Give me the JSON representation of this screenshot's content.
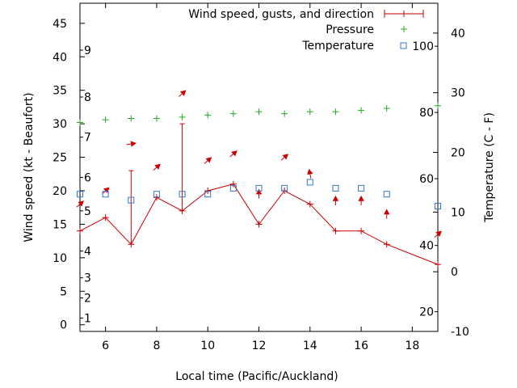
{
  "chart_data": {
    "type": "line",
    "xlabel": "Local time (Pacific/Auckland)",
    "ylabel_left": "Wind speed (kt - Beaufort)",
    "ylabel_right": "Temperature (C - F)",
    "xlim": [
      5,
      19
    ],
    "ylim_left": [
      -1,
      48
    ],
    "ylim_right": [
      -10,
      45
    ],
    "x_ticks": [
      6,
      8,
      10,
      12,
      14,
      16,
      18
    ],
    "y_ticks_left": [
      0,
      5,
      10,
      15,
      20,
      25,
      30,
      35,
      40,
      45
    ],
    "y_ticks_right": [
      -10,
      0,
      10,
      20,
      30,
      40
    ],
    "beaufort_scale": [
      {
        "label": "1",
        "speed": 1
      },
      {
        "label": "2",
        "speed": 4
      },
      {
        "label": "3",
        "speed": 7
      },
      {
        "label": "4",
        "speed": 11
      },
      {
        "label": "5",
        "speed": 17
      },
      {
        "label": "6",
        "speed": 22
      },
      {
        "label": "7",
        "speed": 28
      },
      {
        "label": "8",
        "speed": 34
      },
      {
        "label": "9",
        "speed": 41
      }
    ],
    "fahrenheit_scale": [
      {
        "label": "20",
        "celsius": -6.7
      },
      {
        "label": "40",
        "celsius": 4.4
      },
      {
        "label": "60",
        "celsius": 15.6
      },
      {
        "label": "80",
        "celsius": 26.7
      },
      {
        "label": "100",
        "celsius": 37.8
      }
    ],
    "legend": {
      "wind": "Wind speed, gusts, and direction",
      "pressure": "Pressure",
      "temperature": "Temperature"
    },
    "colors": {
      "wind": "#cc0000",
      "pressure": "#22aa22",
      "temperature": "#3377cc",
      "axis": "#000000"
    },
    "series": [
      {
        "name": "Wind speed",
        "x": [
          5,
          6,
          7,
          8,
          9,
          10,
          11,
          12,
          13,
          14,
          15,
          16,
          17,
          19
        ],
        "values": [
          14,
          16,
          12,
          19,
          17,
          20,
          21,
          15,
          20,
          18,
          14,
          14,
          12,
          9
        ],
        "gusts": [
          null,
          null,
          23,
          null,
          30,
          null,
          null,
          null,
          null,
          null,
          null,
          null,
          null,
          null
        ]
      },
      {
        "name": "Wind direction arrows",
        "points": [
          {
            "x": 5,
            "y": 18,
            "dir": "ne"
          },
          {
            "x": 6,
            "y": 20,
            "dir": "ne"
          },
          {
            "x": 7,
            "y": 27,
            "dir": "e"
          },
          {
            "x": 8,
            "y": 23.5,
            "dir": "ne"
          },
          {
            "x": 9,
            "y": 34.5,
            "dir": "ne"
          },
          {
            "x": 10,
            "y": 24.5,
            "dir": "ne"
          },
          {
            "x": 11,
            "y": 25.5,
            "dir": "ne"
          },
          {
            "x": 12,
            "y": 19.5,
            "dir": "n"
          },
          {
            "x": 13,
            "y": 25,
            "dir": "ne"
          },
          {
            "x": 14,
            "y": 22.5,
            "dir": "nw"
          },
          {
            "x": 15,
            "y": 18.5,
            "dir": "n"
          },
          {
            "x": 16,
            "y": 18.5,
            "dir": "n"
          },
          {
            "x": 17,
            "y": 16.5,
            "dir": "n"
          },
          {
            "x": 19,
            "y": 13.5,
            "dir": "ne"
          }
        ]
      },
      {
        "name": "Pressure",
        "x": [
          5,
          6,
          7,
          8,
          9,
          10,
          11,
          12,
          13,
          14,
          15,
          16,
          17,
          19
        ],
        "values": [
          30.2,
          30.6,
          30.8,
          30.8,
          31,
          31.3,
          31.5,
          31.8,
          31.5,
          31.8,
          31.8,
          32,
          32.3,
          32.7
        ]
      },
      {
        "name": "Temperature",
        "x": [
          5,
          6,
          7,
          8,
          9,
          10,
          11,
          12,
          13,
          14,
          15,
          16,
          17,
          19
        ],
        "values": [
          13,
          13,
          12,
          13,
          13,
          13,
          14,
          14,
          14,
          15,
          14,
          14,
          13,
          11
        ]
      }
    ]
  }
}
